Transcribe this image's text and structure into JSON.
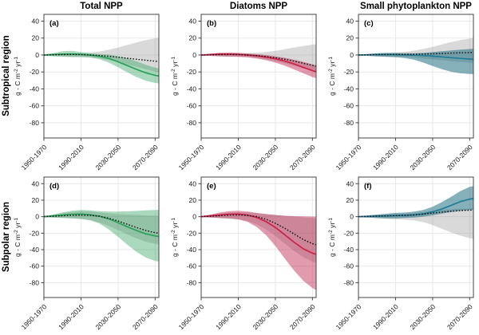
{
  "figure": {
    "column_titles": [
      "Total NPP",
      "Diatoms NPP",
      "Small phytoplankton NPP"
    ],
    "row_labels": [
      "Subtropical region",
      "Subpolar region"
    ]
  },
  "chart_data": {
    "type": "line",
    "title": "",
    "ylabel": {
      "pre": "g - C m",
      "sup1": "-2",
      "mid": " yr",
      "sup2": "-1"
    },
    "x_tick_labels": [
      "1950-1970",
      "1990-2010",
      "2030-2050",
      "2070-2090"
    ],
    "x_tick_years": [
      1960,
      2000,
      2040,
      2080
    ],
    "y_ticks": [
      40,
      20,
      0,
      -20,
      -40,
      -60,
      -80
    ],
    "xlim": [
      1960,
      2084
    ],
    "ylim": [
      -98,
      48
    ],
    "grid": true,
    "x": [
      1960,
      1970,
      1980,
      1990,
      2000,
      2010,
      2020,
      2030,
      2040,
      2050,
      2060,
      2070,
      2080,
      2084
    ],
    "colors": {
      "reference_fill": "rgba(128,128,128,0.30)",
      "reference_line": "#111111",
      "total": "#25a05a",
      "diatoms": "#d01f47",
      "small": "#1e7d98"
    },
    "panels": [
      {
        "letter": "(a)",
        "region": "Subtropical region",
        "variable": "Total NPP",
        "color": "#25a05a",
        "fill": "rgba(42,160,90,0.40)",
        "model": {
          "mean": [
            0,
            0.5,
            1,
            1.2,
            0.8,
            0,
            -1.5,
            -4,
            -8,
            -12.5,
            -17,
            -21,
            -24,
            -24.8
          ],
          "lo": [
            -0.5,
            -1.5,
            -2,
            -2.5,
            -2.5,
            -3,
            -5,
            -9,
            -14.5,
            -20.5,
            -26,
            -30.5,
            -33,
            -33.6
          ],
          "hi": [
            0.5,
            2,
            4.5,
            5,
            3.5,
            2,
            1,
            0.5,
            -1.5,
            -4,
            -7.5,
            -11.5,
            -15,
            -15.8
          ]
        },
        "reference": {
          "mean": [
            0,
            0.2,
            0.5,
            0.6,
            0.4,
            0,
            -0.6,
            -1.5,
            -2.6,
            -3.8,
            -5,
            -6.2,
            -7.3,
            -7.6
          ],
          "lo": [
            -0.5,
            -1,
            -1.5,
            -2,
            -2.2,
            -2.8,
            -4,
            -5.8,
            -8.2,
            -11,
            -14,
            -17,
            -19.7,
            -20.5
          ],
          "hi": [
            0.5,
            1,
            1.5,
            2,
            2.2,
            2.8,
            4.2,
            6.2,
            8.8,
            11.8,
            14.8,
            17.6,
            19.7,
            20.5
          ]
        }
      },
      {
        "letter": "(b)",
        "region": "Subtropical region",
        "variable": "Diatoms NPP",
        "color": "#d01f47",
        "fill": "rgba(190,30,75,0.45)",
        "model": {
          "mean": [
            0,
            0.5,
            1,
            1.1,
            0.7,
            0,
            -1,
            -2.5,
            -4.5,
            -7.2,
            -10.5,
            -14.5,
            -18.5,
            -19.8
          ],
          "lo": [
            -0.5,
            -1,
            -1.5,
            -2,
            -2.2,
            -2.8,
            -4.2,
            -6.2,
            -9,
            -12.5,
            -17,
            -21.5,
            -26,
            -27.4
          ],
          "hi": [
            0.5,
            1.5,
            2.8,
            3,
            2.5,
            1.8,
            1,
            0,
            -1.5,
            -3.2,
            -5.5,
            -8,
            -11,
            -12
          ]
        },
        "reference": {
          "mean": [
            0,
            0.2,
            0.5,
            0.6,
            0.4,
            0,
            -0.7,
            -1.8,
            -3.2,
            -5,
            -7.2,
            -9.7,
            -12.3,
            -13.1
          ],
          "lo": [
            -0.5,
            -1,
            -1.5,
            -1.8,
            -2,
            -2.5,
            -3.6,
            -5.2,
            -7.2,
            -9.7,
            -12.6,
            -15.5,
            -18.2,
            -19
          ],
          "hi": [
            0.5,
            1,
            1.5,
            1.8,
            2,
            2.2,
            2.6,
            3.6,
            5,
            6.8,
            8.8,
            10.6,
            12.2,
            12.8
          ]
        }
      },
      {
        "letter": "(c)",
        "region": "Subtropical region",
        "variable": "Small phytoplankton NPP",
        "color": "#1e7d98",
        "fill": "rgba(23,105,125,0.52)",
        "model": {
          "mean": [
            0,
            0.2,
            0.5,
            0.6,
            0.4,
            0.1,
            -0.2,
            -0.7,
            -1.4,
            -2.2,
            -3.1,
            -4,
            -4.8,
            -5.1
          ],
          "lo": [
            -0.5,
            -1,
            -1.6,
            -2.1,
            -2.6,
            -3.6,
            -5.6,
            -9,
            -13,
            -16.8,
            -19.8,
            -21.6,
            -22.4,
            -22.6
          ],
          "hi": [
            0.5,
            1.2,
            2.1,
            2.6,
            2.6,
            2.2,
            2.1,
            2.5,
            3.4,
            4.4,
            5.4,
            6.3,
            7.1,
            7.4
          ]
        },
        "reference": {
          "mean": [
            0,
            0.2,
            0.4,
            0.5,
            0.5,
            0.6,
            0.8,
            1.1,
            1.4,
            1.8,
            2.2,
            2.6,
            2.9,
            3
          ],
          "lo": [
            -0.5,
            -1,
            -1.5,
            -1.9,
            -2.1,
            -2.5,
            -3.1,
            -4,
            -5.1,
            -6.2,
            -7.3,
            -8.2,
            -9,
            -9.3
          ],
          "hi": [
            0.5,
            1,
            1.6,
            2.1,
            2.6,
            3.6,
            5.1,
            7.1,
            9.6,
            12.4,
            15.2,
            17.6,
            19.6,
            20.2
          ]
        }
      },
      {
        "letter": "(d)",
        "region": "Subpolar region",
        "variable": "Total NPP",
        "color": "#25a05a",
        "fill": "rgba(42,160,90,0.40)",
        "model": {
          "mean": [
            0,
            1,
            2,
            2.8,
            3.1,
            2.3,
            0.5,
            -2.8,
            -7.2,
            -12.2,
            -16.8,
            -20.8,
            -23.4,
            -24
          ],
          "lo": [
            -0.5,
            -1,
            -1.6,
            -2.1,
            -2.8,
            -4.5,
            -8.5,
            -15.5,
            -24.5,
            -34,
            -42.8,
            -49.6,
            -53.6,
            -54.5
          ],
          "hi": [
            0.5,
            2.6,
            5.1,
            7.1,
            8.1,
            7.6,
            6.6,
            6.1,
            6.1,
            6.5,
            7,
            7.6,
            8.1,
            8.3
          ]
        },
        "reference": {
          "mean": [
            0,
            0.5,
            1.1,
            1.6,
            1.9,
            1.6,
            0.5,
            -1.9,
            -5.3,
            -9.2,
            -13.2,
            -16.8,
            -19.4,
            -20
          ],
          "lo": [
            -0.5,
            -1,
            -1.6,
            -2.1,
            -2.7,
            -4.1,
            -7.1,
            -11.3,
            -16.3,
            -21.5,
            -26.4,
            -30.4,
            -32.9,
            -33.5
          ],
          "hi": [
            0.5,
            2.1,
            4.1,
            5.7,
            6.6,
            6.1,
            5.1,
            4.1,
            3.1,
            2.6,
            2.1,
            1.6,
            1.2,
            1.1
          ]
        }
      },
      {
        "letter": "(e)",
        "region": "Subpolar region",
        "variable": "Diatoms NPP",
        "color": "#d01f47",
        "fill": "rgba(190,30,75,0.45)",
        "model": {
          "mean": [
            0,
            1,
            2.1,
            2.9,
            3.1,
            1.9,
            -1,
            -6,
            -13,
            -21.8,
            -30.8,
            -38.8,
            -44.3,
            -45.6
          ],
          "lo": [
            -0.5,
            -1,
            -1.6,
            -2.2,
            -3.2,
            -6.2,
            -12.5,
            -22.5,
            -35.5,
            -50.5,
            -65,
            -77.5,
            -86.5,
            -89
          ],
          "hi": [
            0.5,
            2.6,
            5.1,
            6.6,
            7.1,
            6.1,
            4.6,
            3.1,
            2.1,
            1.1,
            0.6,
            0.3,
            0.1,
            0
          ]
        },
        "reference": {
          "mean": [
            0,
            0.5,
            1.2,
            1.9,
            2.1,
            1.6,
            0,
            -3.1,
            -8,
            -14,
            -20.8,
            -27.6,
            -32.8,
            -34
          ],
          "lo": [
            -0.5,
            -1.1,
            -2.1,
            -2.7,
            -3.2,
            -5.2,
            -9.2,
            -15.4,
            -23.4,
            -32.4,
            -41.3,
            -49,
            -54.6,
            -56
          ],
          "hi": [
            0.5,
            2.1,
            3.6,
            5.1,
            5.6,
            5.1,
            4.1,
            3.1,
            2.1,
            1.1,
            0.1,
            -0.9,
            -1.7,
            -2
          ]
        }
      },
      {
        "letter": "(f)",
        "region": "Subpolar region",
        "variable": "Small phytoplankton NPP",
        "color": "#1e7d98",
        "fill": "rgba(23,105,125,0.52)",
        "model": {
          "mean": [
            0,
            0.3,
            0.7,
            1,
            1.3,
            1.7,
            2.2,
            3.4,
            5.9,
            9.4,
            13.8,
            18.2,
            21.3,
            22
          ],
          "lo": [
            -0.5,
            -1,
            -1.6,
            -2.1,
            -2.1,
            -1.6,
            -1,
            0,
            1.6,
            3.6,
            5.6,
            7.1,
            8.1,
            8.3
          ],
          "hi": [
            0.5,
            1.6,
            2.6,
            3.6,
            4.6,
            5.1,
            6.1,
            8.1,
            12.1,
            17.6,
            24.1,
            31.1,
            36.1,
            37.2
          ]
        },
        "reference": {
          "mean": [
            0,
            0.3,
            0.7,
            1,
            1.3,
            1.6,
            2.1,
            3.1,
            4.4,
            5.6,
            6.6,
            7.4,
            7.9,
            8.1
          ],
          "lo": [
            -0.5,
            -1.1,
            -2.1,
            -2.6,
            -3.1,
            -3.6,
            -4.6,
            -6.6,
            -10.1,
            -14.6,
            -19.1,
            -23.1,
            -26.1,
            -26.8
          ],
          "hi": [
            0.5,
            1.1,
            2.1,
            2.6,
            3.1,
            3.6,
            4.6,
            5.6,
            7.1,
            8.1,
            9.1,
            9.7,
            10.1,
            10.3
          ]
        }
      }
    ]
  }
}
